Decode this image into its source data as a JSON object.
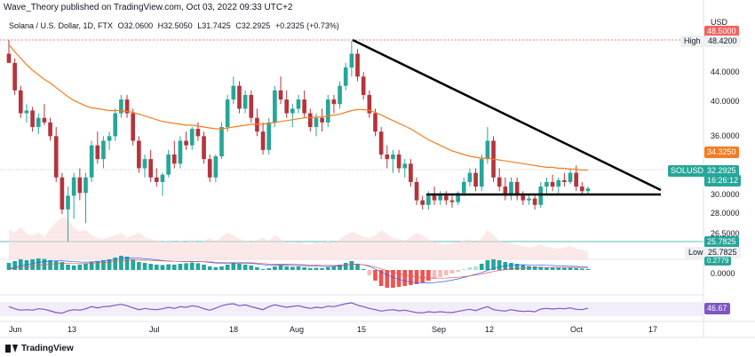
{
  "header": {
    "published": "Wave_Theory published on TradingView.com, Oct 03, 2022 09:33 UTC+2",
    "symbol": "Solana / U.S. Dollar, 1D, FTX",
    "open": "O32.0600",
    "high": "H32.5050",
    "low": "L31.7425",
    "close": "C32.2925",
    "change": "+0.2325 (+0.73%)"
  },
  "axis": {
    "currency": "USD",
    "price_labels": [
      "44.0000",
      "40.0000",
      "36.0000",
      "30.0000",
      "28.0000",
      "26.5000"
    ],
    "date_labels": [
      "Jun",
      "13",
      "Jul",
      "18",
      "Aug",
      "15",
      "Sep",
      "12",
      "Oct",
      "17"
    ]
  },
  "tags": {
    "high_label": "High",
    "high_value": "48.4200",
    "red_top": "48.5000",
    "ma_value": "34.3250",
    "symbol_tag": "SOLUSD",
    "last_price": "32.2925",
    "countdown": "16:26:12",
    "low_green": "25.7825",
    "low_label": "Low",
    "low_value": "25.7825",
    "macd_small": "0.2779",
    "macd_zero": "0.0000",
    "rsi_value": "46.67"
  },
  "footer": {
    "logo": "TradingView"
  },
  "colors": {
    "up": "#26a69a",
    "down": "#ef5350",
    "candle_up": "#26a69a",
    "candle_down": "#b5343c",
    "ma": "#f57c1f",
    "rsi": "#7e57c2",
    "trend": "#000000"
  },
  "chart_data": {
    "type": "candlestick",
    "ylim": [
      26.5,
      48.5
    ],
    "candles": [
      [
        47.0,
        48.5,
        46.0,
        46.0
      ],
      [
        46.0,
        46.5,
        42.5,
        43.0
      ],
      [
        43.0,
        43.5,
        40.0,
        40.5
      ],
      [
        40.5,
        41.5,
        39.5,
        40.8
      ],
      [
        40.8,
        41.2,
        38.5,
        39.0
      ],
      [
        39.0,
        40.5,
        38.2,
        40.0
      ],
      [
        40.0,
        41.5,
        39.2,
        39.5
      ],
      [
        39.5,
        40.0,
        37.5,
        38.0
      ],
      [
        38.0,
        39.0,
        33.0,
        33.5
      ],
      [
        33.5,
        34.0,
        29.5,
        30.0
      ],
      [
        30.0,
        32.5,
        26.5,
        31.5
      ],
      [
        31.5,
        34.0,
        29.0,
        33.5
      ],
      [
        33.5,
        34.5,
        31.0,
        31.8
      ],
      [
        31.8,
        34.0,
        28.5,
        33.5
      ],
      [
        33.5,
        37.5,
        33.0,
        37.0
      ],
      [
        37.0,
        38.5,
        35.0,
        35.5
      ],
      [
        35.5,
        38.0,
        34.5,
        37.5
      ],
      [
        37.5,
        38.5,
        36.5,
        38.0
      ],
      [
        38.0,
        41.0,
        37.5,
        40.5
      ],
      [
        40.5,
        42.5,
        40.0,
        42.0
      ],
      [
        42.0,
        42.5,
        40.0,
        40.5
      ],
      [
        40.5,
        41.0,
        37.0,
        37.5
      ],
      [
        37.5,
        38.0,
        34.0,
        34.5
      ],
      [
        34.5,
        36.0,
        33.5,
        35.5
      ],
      [
        35.5,
        36.5,
        33.0,
        33.5
      ],
      [
        33.5,
        34.5,
        32.5,
        33.0
      ],
      [
        33.0,
        34.0,
        31.5,
        33.8
      ],
      [
        33.8,
        36.5,
        33.5,
        36.0
      ],
      [
        36.0,
        37.5,
        34.5,
        35.0
      ],
      [
        35.0,
        38.0,
        34.5,
        37.5
      ],
      [
        37.5,
        38.5,
        36.5,
        37.0
      ],
      [
        37.0,
        39.0,
        36.5,
        38.8
      ],
      [
        38.8,
        39.5,
        37.5,
        38.0
      ],
      [
        38.0,
        38.5,
        35.0,
        35.5
      ],
      [
        35.5,
        36.0,
        33.0,
        33.5
      ],
      [
        33.5,
        36.0,
        33.0,
        35.8
      ],
      [
        35.8,
        39.5,
        35.5,
        39.0
      ],
      [
        39.0,
        42.5,
        38.5,
        42.0
      ],
      [
        42.0,
        44.5,
        41.5,
        43.5
      ],
      [
        43.5,
        44.0,
        40.5,
        41.0
      ],
      [
        41.0,
        43.0,
        40.5,
        42.5
      ],
      [
        42.5,
        43.0,
        39.5,
        40.0
      ],
      [
        40.0,
        41.0,
        38.0,
        38.5
      ],
      [
        38.5,
        39.5,
        36.0,
        36.5
      ],
      [
        36.5,
        40.0,
        36.0,
        39.5
      ],
      [
        39.5,
        43.5,
        39.0,
        43.0
      ],
      [
        43.0,
        44.5,
        41.5,
        42.0
      ],
      [
        42.0,
        43.0,
        40.0,
        40.5
      ],
      [
        40.5,
        41.5,
        39.0,
        41.0
      ],
      [
        41.0,
        42.5,
        40.5,
        42.0
      ],
      [
        42.0,
        43.0,
        40.0,
        40.5
      ],
      [
        40.5,
        41.0,
        38.5,
        39.0
      ],
      [
        39.0,
        40.5,
        38.0,
        40.0
      ],
      [
        40.0,
        41.0,
        38.5,
        39.5
      ],
      [
        39.5,
        42.5,
        39.0,
        42.0
      ],
      [
        42.0,
        42.5,
        40.5,
        41.5
      ],
      [
        41.5,
        44.0,
        41.0,
        43.5
      ],
      [
        43.5,
        46.0,
        43.0,
        45.5
      ],
      [
        45.5,
        48.4,
        44.5,
        47.0
      ],
      [
        47.0,
        47.5,
        44.0,
        44.5
      ],
      [
        44.5,
        45.0,
        42.0,
        42.5
      ],
      [
        42.5,
        43.0,
        40.0,
        40.5
      ],
      [
        40.5,
        41.0,
        38.0,
        38.5
      ],
      [
        38.5,
        39.0,
        35.5,
        36.0
      ],
      [
        36.0,
        37.0,
        34.5,
        35.5
      ],
      [
        35.5,
        36.5,
        34.0,
        36.0
      ],
      [
        36.0,
        36.5,
        34.0,
        34.5
      ],
      [
        34.5,
        35.5,
        33.5,
        35.0
      ],
      [
        35.0,
        35.5,
        32.5,
        33.0
      ],
      [
        33.0,
        33.5,
        30.5,
        31.0
      ],
      [
        31.0,
        31.5,
        30.0,
        30.5
      ],
      [
        30.5,
        32.0,
        30.0,
        31.5
      ],
      [
        31.5,
        32.5,
        30.5,
        31.0
      ],
      [
        31.0,
        32.0,
        30.5,
        31.5
      ],
      [
        31.5,
        32.0,
        30.5,
        31.0
      ],
      [
        31.0,
        31.5,
        30.2,
        30.8
      ],
      [
        30.8,
        32.0,
        30.5,
        31.8
      ],
      [
        31.8,
        33.5,
        31.5,
        33.0
      ],
      [
        33.0,
        34.5,
        32.5,
        34.0
      ],
      [
        34.0,
        34.5,
        32.0,
        32.5
      ],
      [
        32.5,
        36.0,
        32.0,
        35.5
      ],
      [
        35.5,
        39.0,
        35.0,
        37.5
      ],
      [
        37.5,
        38.0,
        33.0,
        33.5
      ],
      [
        33.5,
        34.5,
        32.0,
        32.5
      ],
      [
        32.5,
        33.5,
        31.0,
        31.5
      ],
      [
        31.5,
        33.5,
        31.0,
        33.0
      ],
      [
        33.0,
        33.5,
        31.0,
        31.5
      ],
      [
        31.5,
        32.0,
        30.5,
        31.0
      ],
      [
        31.0,
        31.5,
        30.5,
        31.2
      ],
      [
        31.2,
        31.5,
        30.0,
        30.5
      ],
      [
        30.5,
        33.0,
        30.2,
        32.5
      ],
      [
        32.5,
        33.5,
        31.5,
        33.0
      ],
      [
        33.0,
        33.8,
        32.0,
        32.5
      ],
      [
        32.5,
        33.5,
        31.8,
        33.2
      ],
      [
        33.2,
        34.0,
        32.5,
        33.0
      ],
      [
        33.0,
        34.5,
        32.8,
        34.0
      ],
      [
        34.0,
        34.8,
        32.0,
        32.5
      ],
      [
        32.5,
        33.0,
        31.5,
        32.0
      ],
      [
        32.0,
        32.5,
        31.7,
        32.29
      ]
    ],
    "ma": [
      48.0,
      47.2,
      46.5,
      45.8,
      45.2,
      44.7,
      44.2,
      43.8,
      43.3,
      42.8,
      42.3,
      41.9,
      41.6,
      41.3,
      41.1,
      41.0,
      40.9,
      40.8,
      40.8,
      40.8,
      40.7,
      40.6,
      40.4,
      40.2,
      40.0,
      39.8,
      39.6,
      39.5,
      39.4,
      39.3,
      39.2,
      39.2,
      39.1,
      39.0,
      38.9,
      38.8,
      38.8,
      38.9,
      39.0,
      39.1,
      39.2,
      39.3,
      39.3,
      39.3,
      39.4,
      39.5,
      39.6,
      39.7,
      39.8,
      39.9,
      40.0,
      40.0,
      40.1,
      40.1,
      40.2,
      40.3,
      40.4,
      40.6,
      40.8,
      40.9,
      40.9,
      40.8,
      40.6,
      40.3,
      40.0,
      39.7,
      39.4,
      39.1,
      38.8,
      38.4,
      38.0,
      37.6,
      37.3,
      37.0,
      36.7,
      36.4,
      36.2,
      36.0,
      35.8,
      35.7,
      35.6,
      35.6,
      35.5,
      35.4,
      35.3,
      35.2,
      35.1,
      35.0,
      34.9,
      34.8,
      34.7,
      34.6,
      34.6,
      34.5,
      34.5,
      34.4,
      34.4,
      34.3,
      34.3
    ],
    "volume": [
      0.55,
      0.5,
      0.62,
      0.48,
      0.45,
      0.5,
      0.42,
      0.58,
      0.7,
      0.8,
      0.75,
      0.6,
      0.52,
      0.55,
      0.45,
      0.4,
      0.38,
      0.42,
      0.45,
      0.5,
      0.4,
      0.45,
      0.5,
      0.42,
      0.38,
      0.35,
      0.33,
      0.36,
      0.3,
      0.35,
      0.32,
      0.38,
      0.3,
      0.35,
      0.4,
      0.33,
      0.42,
      0.5,
      0.45,
      0.38,
      0.35,
      0.33,
      0.36,
      0.4,
      0.35,
      0.45,
      0.38,
      0.32,
      0.3,
      0.33,
      0.3,
      0.28,
      0.32,
      0.3,
      0.35,
      0.3,
      0.38,
      0.45,
      0.52,
      0.48,
      0.42,
      0.4,
      0.45,
      0.55,
      0.48,
      0.4,
      0.38,
      0.35,
      0.42,
      0.5,
      0.45,
      0.38,
      0.32,
      0.3,
      0.28,
      0.3,
      0.32,
      0.35,
      0.38,
      0.3,
      0.4,
      0.55,
      0.45,
      0.35,
      0.32,
      0.3,
      0.28,
      0.25,
      0.22,
      0.25,
      0.28,
      0.24,
      0.22,
      0.2,
      0.22,
      0.25,
      0.2,
      0.18,
      0.16
    ],
    "macd_hist": [
      0.4,
      0.5,
      0.6,
      0.55,
      0.6,
      0.65,
      0.62,
      0.55,
      0.5,
      0.45,
      0.3,
      0.25,
      0.3,
      0.35,
      0.45,
      0.5,
      0.55,
      0.6,
      0.7,
      0.8,
      0.75,
      0.6,
      0.45,
      0.4,
      0.35,
      0.3,
      0.28,
      0.32,
      0.3,
      0.35,
      0.38,
      0.42,
      0.38,
      0.3,
      0.2,
      0.15,
      0.2,
      0.3,
      0.4,
      0.35,
      0.3,
      0.25,
      0.15,
      0.05,
      0.1,
      0.2,
      0.25,
      0.2,
      0.18,
      0.2,
      0.15,
      0.1,
      0.12,
      0.1,
      0.15,
      0.2,
      0.3,
      0.4,
      0.5,
      0.35,
      0.05,
      -0.3,
      -0.6,
      -0.9,
      -1.0,
      -1.0,
      -0.95,
      -0.9,
      -0.85,
      -0.8,
      -0.7,
      -0.6,
      -0.5,
      -0.4,
      -0.3,
      -0.2,
      -0.1,
      0.05,
      0.15,
      0.2,
      0.35,
      0.55,
      0.6,
      0.55,
      0.45,
      0.4,
      0.35,
      0.28,
      0.22,
      0.2,
      0.18,
      0.15,
      0.15,
      0.12,
      0.12,
      0.15,
      0.1,
      0.08,
      0.06
    ],
    "rsi": [
      52,
      45,
      40,
      42,
      40,
      45,
      43,
      38,
      32,
      30,
      38,
      42,
      40,
      45,
      52,
      48,
      52,
      53,
      57,
      60,
      55,
      48,
      42,
      46,
      43,
      42,
      45,
      50,
      46,
      52,
      50,
      55,
      52,
      45,
      40,
      47,
      55,
      60,
      62,
      55,
      58,
      52,
      47,
      42,
      52,
      58,
      54,
      50,
      53,
      55,
      50,
      46,
      50,
      48,
      54,
      52,
      57,
      62,
      65,
      57,
      52,
      46,
      42,
      37,
      40,
      42,
      38,
      40,
      36,
      32,
      31,
      35,
      33,
      35,
      33,
      32,
      36,
      40,
      43,
      39,
      46,
      52,
      42,
      39,
      37,
      42,
      38,
      36,
      37,
      35,
      44,
      46,
      44,
      46,
      45,
      48,
      43,
      42,
      46.67
    ]
  }
}
